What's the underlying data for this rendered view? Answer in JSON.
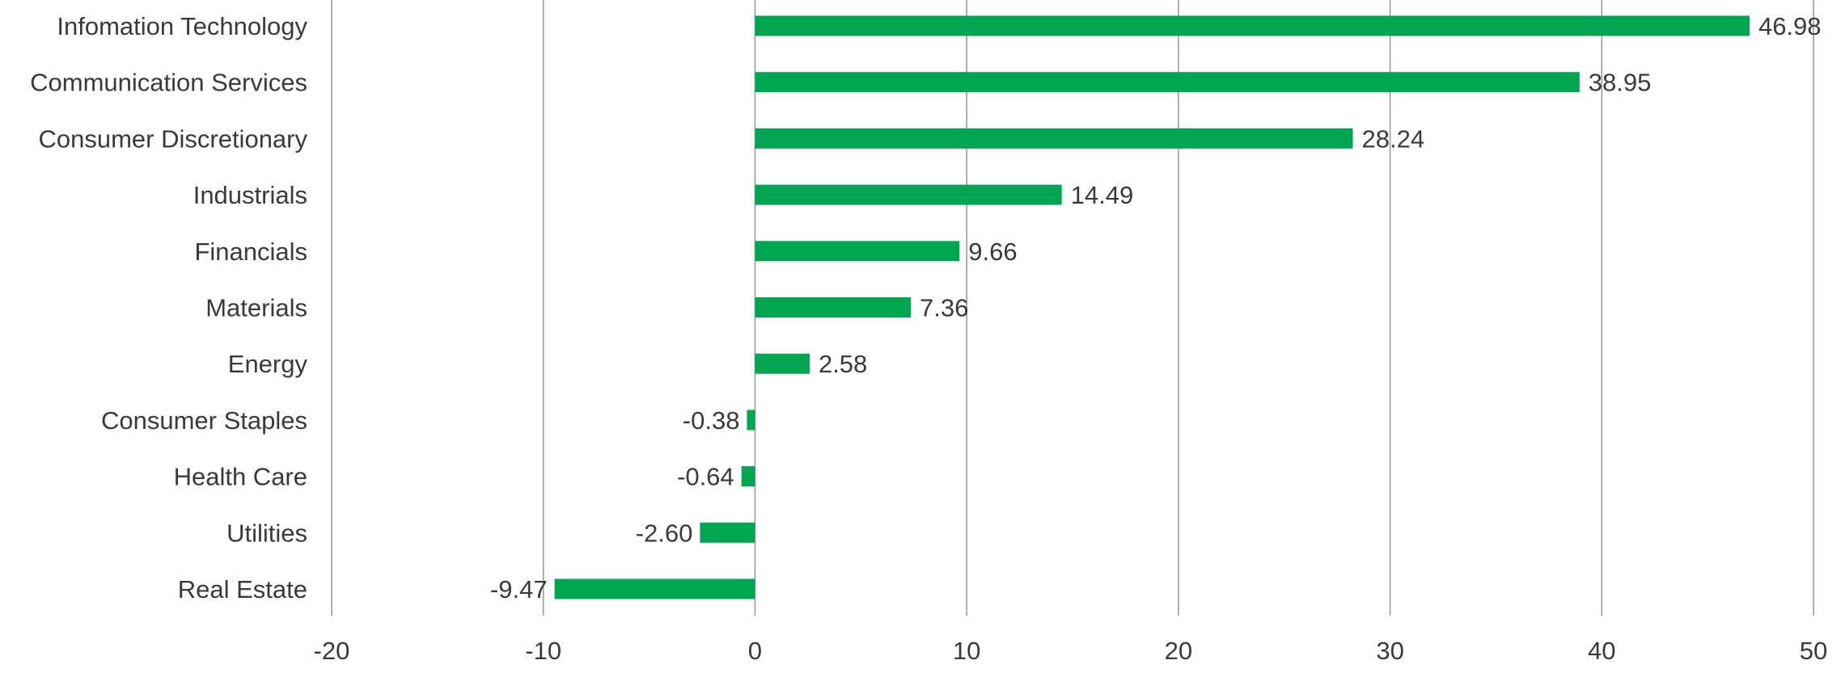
{
  "chart_data": {
    "type": "bar",
    "orientation": "horizontal",
    "title": "",
    "xlabel": "",
    "ylabel": "",
    "categories": [
      "Infomation Technology",
      "Communication Services",
      "Consumer Discretionary",
      "Industrials",
      "Financials",
      "Materials",
      "Energy",
      "Consumer Staples",
      "Health Care",
      "Utilities",
      "Real Estate"
    ],
    "values": [
      46.98,
      38.95,
      28.24,
      14.49,
      9.66,
      7.36,
      2.58,
      -0.38,
      -0.64,
      -2.6,
      -9.47
    ],
    "value_labels": [
      "46.98",
      "38.95",
      "28.24",
      "14.49",
      "9.66",
      "7.36",
      "2.58",
      "-0.38",
      "-0.64",
      "-2.60",
      "-9.47"
    ],
    "xlim": [
      -20,
      50
    ],
    "xticks": [
      -20,
      -10,
      0,
      10,
      20,
      30,
      40,
      50
    ],
    "xtick_labels": [
      "-20",
      "-10",
      "0",
      "10",
      "20",
      "30",
      "40",
      "50"
    ],
    "grid": "vertical",
    "legend": "none",
    "bar_color": "#00a651",
    "grid_color": "#9a9aa8",
    "text_color": "#3a3a3a"
  }
}
